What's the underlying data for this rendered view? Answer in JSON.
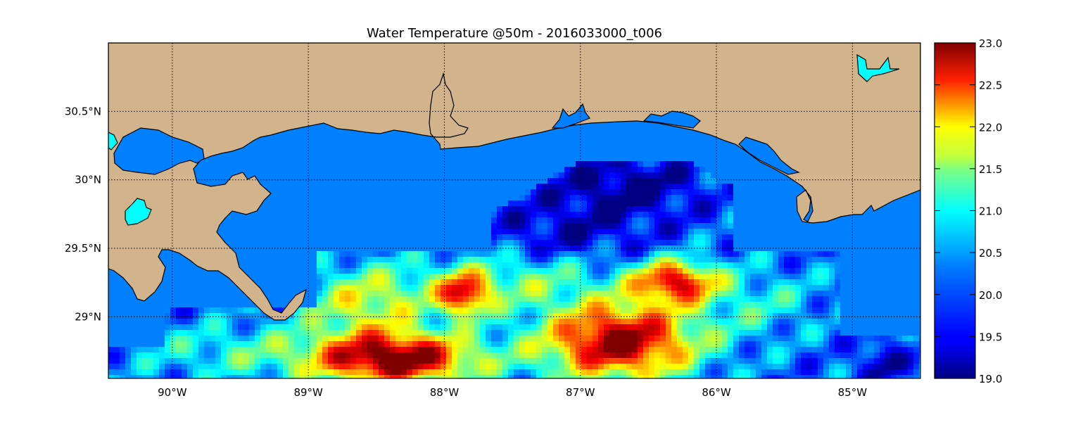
{
  "title": "Water Temperature @50m - 2016033000_t006",
  "map": {
    "lon_range": [
      -90.47,
      -84.5
    ],
    "lat_range": [
      28.55,
      31.0
    ],
    "lon_ticks": [
      {
        "value": -90,
        "label": "90°W"
      },
      {
        "value": -89,
        "label": "89°W"
      },
      {
        "value": -88,
        "label": "88°W"
      },
      {
        "value": -87,
        "label": "87°W"
      },
      {
        "value": -86,
        "label": "86°W"
      },
      {
        "value": -85,
        "label": "85°W"
      }
    ],
    "lat_ticks": [
      {
        "value": 30.5,
        "label": "30.5°N"
      },
      {
        "value": 30.0,
        "label": "30°N"
      },
      {
        "value": 29.5,
        "label": "29.5°N"
      },
      {
        "value": 29.0,
        "label": "29°N"
      }
    ],
    "grid": "dotted",
    "land_color": "#d2b48c",
    "ocean_color": "#0080ff",
    "lake_color": "#00ffff"
  },
  "colorbar": {
    "min": 19.0,
    "max": 23.0,
    "colormap": "jet",
    "ticks": [
      "23.0",
      "22.5",
      "22.0",
      "21.5",
      "21.0",
      "20.5",
      "20.0",
      "19.5",
      "19.0"
    ]
  }
}
